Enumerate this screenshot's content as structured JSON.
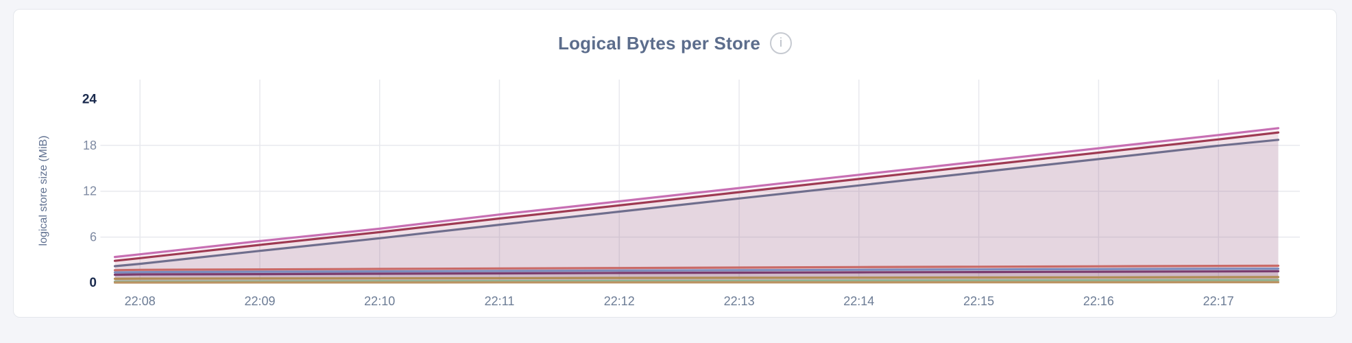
{
  "header": {
    "title": "Logical Bytes per Store",
    "info_icon_glyph": "i"
  },
  "colors": {
    "page_background": "#f4f5f9",
    "card_background": "#ffffff",
    "card_border": "#e4e7ec",
    "title_text": "#5c6d8c",
    "gridline": "#e8e9ee",
    "x_tick_text": "#6c7c95",
    "y_tick_text": "#7e8aa2",
    "y_tick_extreme_text": "#1b2b4e",
    "y_axis_title_text": "#5f7090"
  },
  "chart_data": {
    "type": "area",
    "title": "Logical Bytes per Store",
    "xlabel": "",
    "ylabel": "logical store size (MiB)",
    "grid": true,
    "legend": "none",
    "x_tick_labels": [
      "22:08",
      "22:09",
      "22:10",
      "22:11",
      "22:12",
      "22:13",
      "22:14",
      "22:15",
      "22:16",
      "22:17"
    ],
    "x_tick_minutes": [
      0,
      1,
      2,
      3,
      4,
      5,
      6,
      7,
      8,
      9
    ],
    "y_ticks": [
      0,
      6,
      12,
      18,
      24
    ],
    "ylim": [
      0,
      26.6
    ],
    "xlim_minutes": [
      -0.33,
      9.68
    ],
    "x_minutes": [
      -0.21,
      0,
      1,
      2,
      3,
      4,
      5,
      6,
      7,
      8,
      9,
      9.5
    ],
    "stroke_width": 3.2,
    "fill_opacity": 0.09,
    "series": [
      {
        "id": "store-1",
        "color": "#c76fb3",
        "values": [
          3.4,
          3.75,
          5.48,
          7.1,
          8.95,
          10.68,
          12.42,
          14.15,
          15.88,
          17.62,
          19.35,
          20.25
        ]
      },
      {
        "id": "store-2",
        "color": "#9e3a52",
        "values": [
          2.9,
          3.25,
          4.98,
          6.65,
          8.43,
          10.15,
          11.88,
          13.6,
          15.33,
          17.05,
          18.78,
          19.68
        ]
      },
      {
        "id": "store-3",
        "color": "#6f6e8d",
        "values": [
          2.2,
          2.5,
          4.2,
          5.85,
          7.62,
          9.33,
          11.05,
          12.76,
          14.48,
          16.2,
          17.95,
          18.72
        ]
      },
      {
        "id": "store-4",
        "color": "#c96a67",
        "values": [
          1.68,
          1.72,
          1.78,
          1.84,
          1.9,
          1.96,
          2.02,
          2.08,
          2.13,
          2.18,
          2.23,
          2.25
        ]
      },
      {
        "id": "store-5",
        "color": "#7b8cbd",
        "values": [
          1.38,
          1.42,
          1.47,
          1.52,
          1.57,
          1.62,
          1.67,
          1.72,
          1.77,
          1.81,
          1.85,
          1.87
        ]
      },
      {
        "id": "store-6",
        "color": "#7a3c6e",
        "values": [
          1.08,
          1.12,
          1.16,
          1.21,
          1.26,
          1.31,
          1.35,
          1.39,
          1.43,
          1.47,
          1.51,
          1.53
        ]
      },
      {
        "id": "store-7",
        "color": "#b18d55",
        "values": [
          0.55,
          0.57,
          0.59,
          0.61,
          0.63,
          0.66,
          0.68,
          0.7,
          0.72,
          0.74,
          0.76,
          0.77
        ]
      },
      {
        "id": "store-8",
        "color": "#8fb392",
        "values": [
          0.18,
          0.19,
          0.21,
          0.23,
          0.25,
          0.27,
          0.29,
          0.31,
          0.33,
          0.35,
          0.37,
          0.38
        ]
      },
      {
        "id": "store-9",
        "color": "#bb9464",
        "values": [
          0.05,
          0.05,
          0.06,
          0.06,
          0.07,
          0.07,
          0.08,
          0.08,
          0.09,
          0.09,
          0.1,
          0.1
        ]
      }
    ]
  }
}
